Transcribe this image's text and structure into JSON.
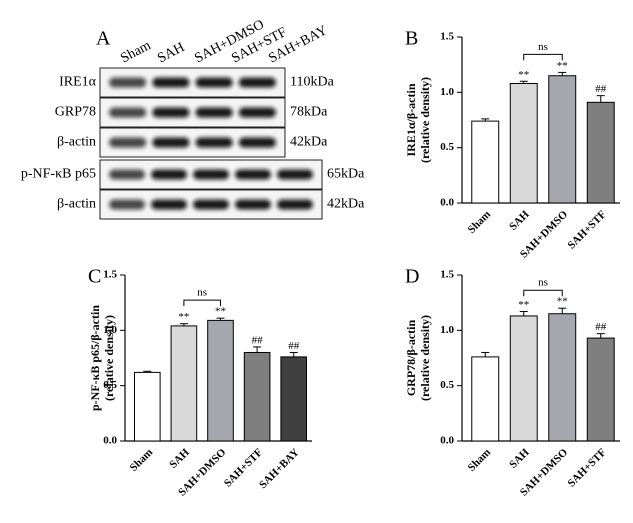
{
  "blot": {
    "panel": "A",
    "lanes": [
      "Sham",
      "SAH",
      "SAH+DMSO",
      "SAH+STF",
      "SAH+BAY"
    ],
    "groups": [
      {
        "lanes": 4,
        "rows": [
          {
            "label": "IRE1α",
            "size": "110kDa"
          },
          {
            "label": "GRP78",
            "size": "78kDa"
          },
          {
            "label": "β-actin",
            "size": "42kDa"
          }
        ]
      },
      {
        "lanes": 5,
        "rows": [
          {
            "label": "p-NF-κB p65",
            "size": "65kDa"
          },
          {
            "label": "β-actin",
            "size": "42kDa"
          }
        ]
      }
    ]
  },
  "chart_data": [
    {
      "type": "bar",
      "panel": "B",
      "ylabel": [
        "IRE1α/β-actin",
        "(relative density)"
      ],
      "categories": [
        "Sham",
        "SAH",
        "SAH+DMSO",
        "SAH+STF"
      ],
      "values": [
        0.74,
        1.08,
        1.15,
        0.91
      ],
      "errors": [
        0.02,
        0.02,
        0.03,
        0.06
      ],
      "colors": [
        "#ffffff",
        "#d9d9d9",
        "#a6a6ae",
        "#7f7f7f"
      ],
      "annotations": [
        null,
        "**",
        "**",
        "##"
      ],
      "comparisons": [
        {
          "label": "ns",
          "between": [
            "SAH",
            "SAH+DMSO"
          ]
        }
      ],
      "ylim": [
        0,
        1.5
      ],
      "yticks": [
        {
          "value": 0,
          "label": "0.0"
        },
        0.5,
        {
          "value": 1,
          "label": "1.0"
        },
        1.5
      ]
    },
    {
      "type": "bar",
      "panel": "C",
      "ylabel": [
        "p-NF-κB p65/β-actin",
        "(relative density)"
      ],
      "categories": [
        "Sham",
        "SAH",
        "SAH+DMSO",
        "SAH+STF",
        "SAH+BAY"
      ],
      "values": [
        0.62,
        1.04,
        1.09,
        0.8,
        0.76
      ],
      "errors": [
        0.01,
        0.02,
        0.02,
        0.05,
        0.04
      ],
      "colors": [
        "#ffffff",
        "#d9d9d9",
        "#a6a6ae",
        "#7f7f7f",
        "#404040"
      ],
      "annotations": [
        null,
        "**",
        "**",
        "##",
        "##"
      ],
      "comparisons": [
        {
          "label": "ns",
          "between": [
            "SAH",
            "SAH+DMSO"
          ]
        }
      ],
      "ylim": [
        0,
        1.5
      ],
      "yticks": [
        {
          "value": 0,
          "label": "0.0"
        },
        0.5,
        {
          "value": 1,
          "label": "1.0"
        },
        1.5
      ]
    },
    {
      "type": "bar",
      "panel": "D",
      "ylabel": [
        "GRP78/β-actin",
        "(relative density)"
      ],
      "categories": [
        "Sham",
        "SAH",
        "SAH+DMSO",
        "SAH+STF"
      ],
      "values": [
        0.76,
        1.13,
        1.15,
        0.93
      ],
      "errors": [
        0.04,
        0.04,
        0.05,
        0.04
      ],
      "colors": [
        "#ffffff",
        "#d9d9d9",
        "#a6a6ae",
        "#7f7f7f"
      ],
      "annotations": [
        null,
        "**",
        "**",
        "##"
      ],
      "comparisons": [
        {
          "label": "ns",
          "between": [
            "SAH",
            "SAH+DMSO"
          ]
        }
      ],
      "ylim": [
        0,
        1.5
      ],
      "yticks": [
        {
          "value": 0,
          "label": "0.0"
        },
        0.5,
        {
          "value": 1,
          "label": "1.0"
        },
        1.5
      ]
    }
  ]
}
